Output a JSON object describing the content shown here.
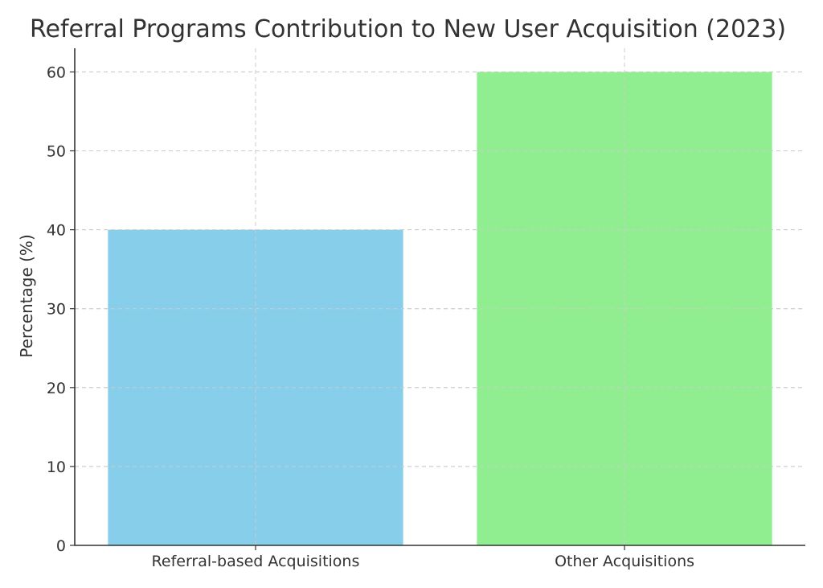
{
  "chart_data": {
    "type": "bar",
    "title": "Referral Programs Contribution to New User Acquisition (2023)",
    "xlabel": "",
    "ylabel": "Percentage (%)",
    "categories": [
      "Referral-based Acquisitions",
      "Other Acquisitions"
    ],
    "values": [
      40,
      60
    ],
    "colors": [
      "#87ceeb",
      "#90ee90"
    ],
    "ylim": [
      0,
      63
    ],
    "yticks": [
      0,
      10,
      20,
      30,
      40,
      50,
      60
    ],
    "grid": true,
    "legend": false
  }
}
